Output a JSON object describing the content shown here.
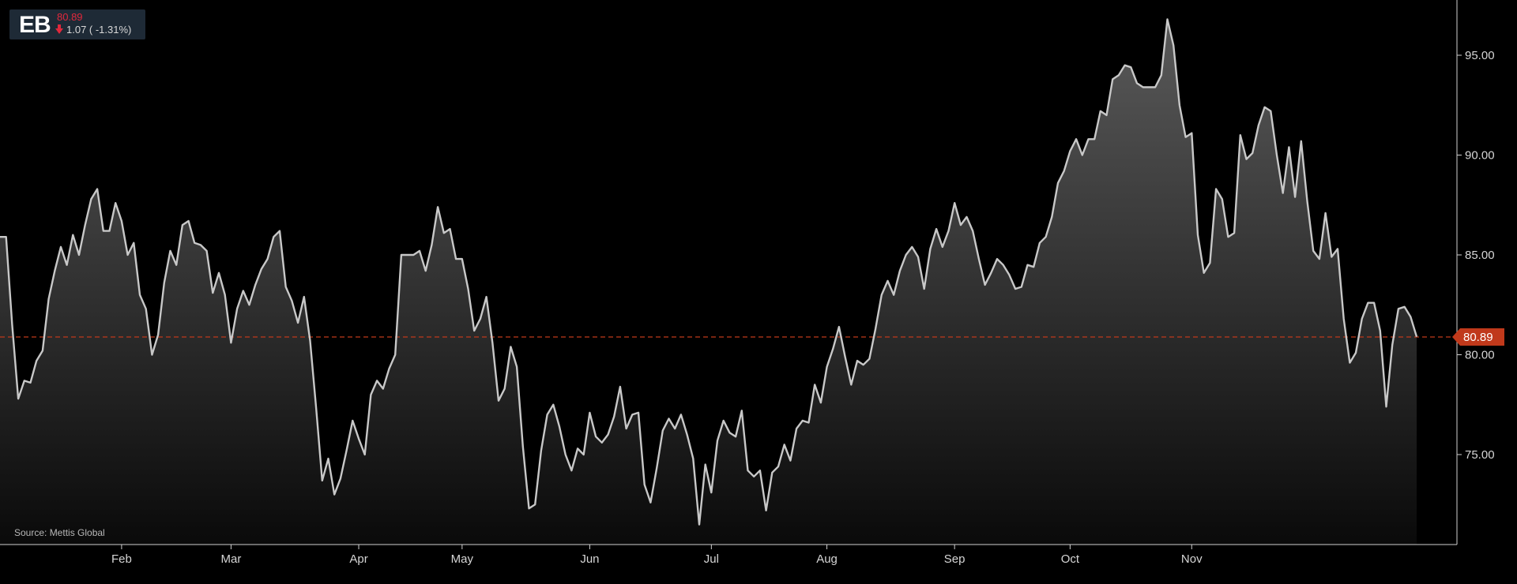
{
  "ticker": {
    "symbol": "EB",
    "price": "80.89",
    "change": "1.07 ( -1.31%)",
    "direction_icon": "down-arrow-icon",
    "down_color": "#e0283c"
  },
  "source": "Source: Mettis Global",
  "colors": {
    "background": "#000000",
    "line": "#c8c8c8",
    "area_top": "#5a5a5a",
    "area_bottom": "#0a0a0a",
    "reference_line": "#c0391b",
    "last_label_bg": "#c0391b",
    "axis": "#d0d0d0"
  },
  "chart_data": {
    "type": "area",
    "x_unit": "trading day index",
    "y_axis": {
      "ticks": [
        75,
        80,
        85,
        90,
        95
      ],
      "tick_labels": [
        "75.00",
        "80.00",
        "85.00",
        "90.00",
        "95.00"
      ],
      "range": [
        71,
        97
      ],
      "position": "right"
    },
    "x_axis": {
      "labels": [
        "Feb",
        "Mar",
        "Apr",
        "May",
        "Jun",
        "Jul",
        "Aug",
        "Sep",
        "Oct",
        "Nov"
      ],
      "label_day_index": [
        20,
        38,
        59,
        76,
        97,
        117,
        136,
        157,
        176,
        196
      ]
    },
    "last_value": 80.89,
    "last_value_label": "80.89",
    "grid": false,
    "values": [
      85.9,
      85.9,
      81.5,
      77.8,
      78.7,
      78.6,
      79.7,
      80.2,
      82.8,
      84.2,
      85.4,
      84.5,
      86.0,
      85.0,
      86.5,
      87.8,
      88.3,
      86.2,
      86.2,
      87.6,
      86.7,
      85.0,
      85.6,
      83.0,
      82.3,
      80.0,
      81.0,
      83.6,
      85.2,
      84.5,
      86.5,
      86.7,
      85.6,
      85.5,
      85.2,
      83.1,
      84.1,
      83.0,
      80.6,
      82.3,
      83.2,
      82.5,
      83.5,
      84.3,
      84.8,
      85.9,
      86.2,
      83.4,
      82.7,
      81.6,
      82.9,
      80.7,
      77.3,
      73.7,
      74.8,
      73.0,
      73.8,
      75.2,
      76.7,
      75.8,
      75.0,
      78.0,
      78.7,
      78.3,
      79.3,
      80.0,
      85.0,
      85.0,
      85.0,
      85.2,
      84.2,
      85.5,
      87.4,
      86.1,
      86.3,
      84.8,
      84.8,
      83.3,
      81.2,
      81.8,
      82.9,
      80.6,
      77.7,
      78.3,
      80.4,
      79.4,
      75.4,
      72.3,
      72.5,
      75.2,
      77.0,
      77.5,
      76.4,
      75.0,
      74.2,
      75.3,
      75.0,
      77.1,
      75.9,
      75.6,
      76.0,
      76.9,
      78.4,
      76.3,
      77.0,
      77.1,
      73.5,
      72.6,
      74.3,
      76.2,
      76.8,
      76.3,
      77.0,
      76.0,
      74.8,
      71.5,
      74.5,
      73.1,
      75.7,
      76.7,
      76.1,
      75.9,
      77.2,
      74.2,
      73.9,
      74.2,
      72.2,
      74.1,
      74.4,
      75.5,
      74.7,
      76.3,
      76.7,
      76.6,
      78.5,
      77.6,
      79.4,
      80.3,
      81.4,
      79.9,
      78.5,
      79.7,
      79.5,
      79.8,
      81.3,
      83.0,
      83.7,
      83.0,
      84.2,
      85.0,
      85.4,
      84.9,
      83.3,
      85.3,
      86.3,
      85.4,
      86.2,
      87.6,
      86.5,
      86.9,
      86.2,
      84.8,
      83.5,
      84.1,
      84.8,
      84.5,
      84.0,
      83.3,
      83.4,
      84.5,
      84.4,
      85.6,
      85.9,
      86.9,
      88.6,
      89.2,
      90.2,
      90.8,
      90.0,
      90.8,
      90.8,
      92.2,
      92.0,
      93.8,
      94.0,
      94.5,
      94.4,
      93.6,
      93.4,
      93.4,
      93.4,
      94.0,
      96.8,
      95.5,
      92.5,
      90.9,
      91.1,
      86.0,
      84.1,
      84.6,
      88.3,
      87.8,
      85.9,
      86.1,
      91.0,
      89.8,
      90.1,
      91.5,
      92.4,
      92.2,
      90.0,
      88.1,
      90.4,
      87.9,
      90.7,
      87.7,
      85.2,
      84.8,
      87.1,
      84.9,
      85.3,
      81.8,
      79.6,
      80.1,
      81.8,
      82.6,
      82.6,
      81.2,
      77.4,
      80.5,
      82.3,
      82.4,
      81.9,
      80.9
    ]
  }
}
